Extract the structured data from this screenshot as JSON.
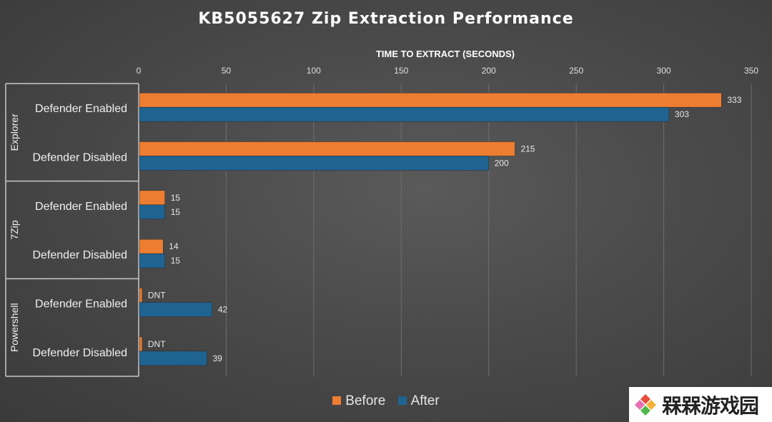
{
  "title": "KB5055627 Zip Extraction Performance",
  "chart_data": {
    "type": "bar",
    "orientation": "horizontal",
    "title": "KB5055627 Zip Extraction Performance",
    "xlabel": "TIME TO EXTRACT (SECONDS)",
    "xlim": [
      0,
      350
    ],
    "xticks": [
      0,
      50,
      100,
      150,
      200,
      250,
      300,
      350
    ],
    "gridlines": true,
    "legend_position": "bottom",
    "groups": [
      {
        "name": "Explorer",
        "categories": [
          {
            "label": "Defender Enabled",
            "before": 333,
            "before_label": "333",
            "after": 303,
            "after_label": "303"
          },
          {
            "label": "Defender Disabled",
            "before": 215,
            "before_label": "215",
            "after": 200,
            "after_label": "200"
          }
        ]
      },
      {
        "name": "7Zip",
        "categories": [
          {
            "label": "Defender Enabled",
            "before": 15,
            "before_label": "15",
            "after": 15,
            "after_label": "15"
          },
          {
            "label": "Defender Disabled",
            "before": 14,
            "before_label": "14",
            "after": 15,
            "after_label": "15"
          }
        ]
      },
      {
        "name": "Powershell",
        "categories": [
          {
            "label": "Defender Enabled",
            "before": 2,
            "before_label": "DNT",
            "after": 42,
            "after_label": "42"
          },
          {
            "label": "Defender Disabled",
            "before": 2,
            "before_label": "DNT",
            "after": 39,
            "after_label": "39"
          }
        ]
      }
    ],
    "series": [
      {
        "name": "Before",
        "color": "#ed7d31"
      },
      {
        "name": "After",
        "color": "#1f6391"
      }
    ]
  },
  "legend": {
    "before_label": "Before",
    "after_label": "After",
    "before_color": "#ed7d31",
    "after_color": "#1f6391"
  },
  "watermark": {
    "text": "槑槑游戏园",
    "icon": "logo-icon"
  }
}
